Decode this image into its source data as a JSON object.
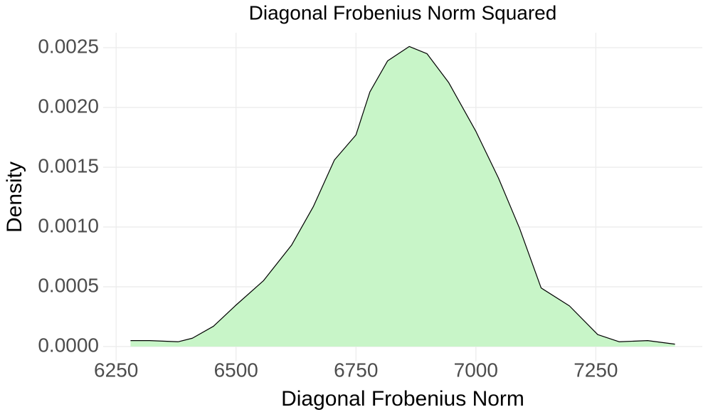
{
  "chart_data": {
    "type": "area",
    "title": "Diagonal Frobenius Norm Squared",
    "x_label": "Diagonal Frobenius Norm",
    "y_label": "Density",
    "x": [
      6280,
      6320,
      6379,
      6409,
      6453,
      6498,
      6557,
      6616,
      6661,
      6705,
      6750,
      6779,
      6816,
      6861,
      6898,
      6943,
      7000,
      7047,
      7091,
      7136,
      7195,
      7254,
      7299,
      7358,
      7415
    ],
    "values": [
      5e-05,
      5e-05,
      4e-05,
      7e-05,
      0.00017,
      0.00034,
      0.00055,
      0.00085,
      0.00117,
      0.00156,
      0.00177,
      0.00213,
      0.00239,
      0.00251,
      0.00245,
      0.00221,
      0.0018,
      0.00141,
      0.00099,
      0.00049,
      0.00034,
      0.0001,
      4e-05,
      5e-05,
      2e-05
    ],
    "color": "#c8f5c8",
    "line_color": "#000000",
    "xlim": [
      6223,
      7472
    ],
    "ylim": [
      -0.000125,
      0.002625
    ],
    "xticks": [
      6250,
      6500,
      6750,
      7000,
      7250
    ],
    "yticks": [
      {
        "value": 0,
        "label": "0.0000"
      },
      {
        "value": 0.0005,
        "label": "0.0005"
      },
      {
        "value": 0.001,
        "label": "0.0010"
      },
      {
        "value": 0.0015,
        "label": "0.0015"
      },
      {
        "value": 0.002,
        "label": "0.0020"
      },
      {
        "value": 0.0025,
        "label": "0.0025"
      }
    ],
    "grid": true
  }
}
